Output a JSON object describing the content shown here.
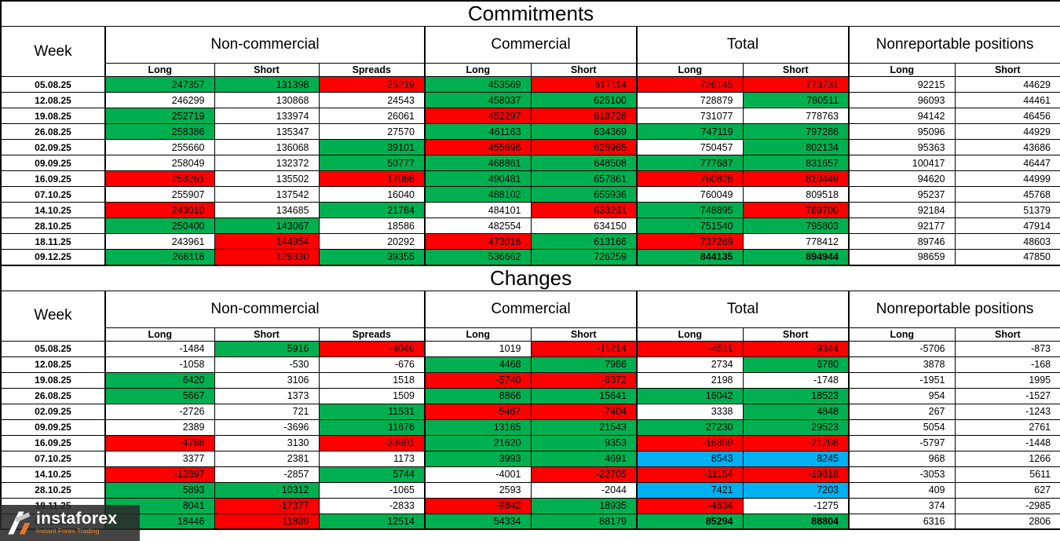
{
  "colors": {
    "green": "#00b050",
    "red": "#ff0000",
    "blue": "#00b0f0"
  },
  "watermark": {
    "brand": "instaforex",
    "tagline": "Instant Forex Trading"
  },
  "chart_data": [
    {
      "type": "table",
      "title": "Commitments",
      "week_header": "Week",
      "groups": [
        {
          "label": "Non-commercial",
          "cols": [
            "Long",
            "Short",
            "Spreads"
          ]
        },
        {
          "label": "Commercial",
          "cols": [
            "Long",
            "Short"
          ]
        },
        {
          "label": "Total",
          "cols": [
            "Long",
            "Short"
          ]
        },
        {
          "label": "Nonreportable positions",
          "cols": [
            "Long",
            "Short"
          ]
        }
      ],
      "rows": [
        {
          "week": "05.08.25",
          "cells": [
            [
              "247357",
              "g"
            ],
            [
              "131398",
              "g"
            ],
            [
              "25219",
              "r"
            ],
            [
              "453569",
              "g"
            ],
            [
              "617114",
              "r"
            ],
            [
              "726145",
              "r"
            ],
            [
              "773731",
              "r"
            ],
            [
              "92215",
              "w"
            ],
            [
              "44629",
              "w"
            ]
          ]
        },
        {
          "week": "12.08.25",
          "cells": [
            [
              "246299",
              "w"
            ],
            [
              "130868",
              "w"
            ],
            [
              "24543",
              "w"
            ],
            [
              "458037",
              "g"
            ],
            [
              "625100",
              "g"
            ],
            [
              "728879",
              "w"
            ],
            [
              "780511",
              "g"
            ],
            [
              "96093",
              "w"
            ],
            [
              "44461",
              "w"
            ]
          ]
        },
        {
          "week": "19.08.25",
          "cells": [
            [
              "252719",
              "g"
            ],
            [
              "133974",
              "w"
            ],
            [
              "26061",
              "w"
            ],
            [
              "452297",
              "r"
            ],
            [
              "618728",
              "r"
            ],
            [
              "731077",
              "w"
            ],
            [
              "778763",
              "w"
            ],
            [
              "94142",
              "w"
            ],
            [
              "46456",
              "w"
            ]
          ]
        },
        {
          "week": "26.08.25",
          "cells": [
            [
              "258386",
              "g"
            ],
            [
              "135347",
              "w"
            ],
            [
              "27570",
              "w"
            ],
            [
              "461163",
              "g"
            ],
            [
              "634369",
              "g"
            ],
            [
              "747119",
              "g"
            ],
            [
              "797286",
              "g"
            ],
            [
              "95096",
              "w"
            ],
            [
              "44929",
              "w"
            ]
          ]
        },
        {
          "week": "02.09.25",
          "cells": [
            [
              "255660",
              "w"
            ],
            [
              "136068",
              "w"
            ],
            [
              "39101",
              "g"
            ],
            [
              "455696",
              "r"
            ],
            [
              "626965",
              "r"
            ],
            [
              "750457",
              "w"
            ],
            [
              "802134",
              "g"
            ],
            [
              "95363",
              "w"
            ],
            [
              "43686",
              "w"
            ]
          ]
        },
        {
          "week": "09.09.25",
          "cells": [
            [
              "258049",
              "w"
            ],
            [
              "132372",
              "w"
            ],
            [
              "50777",
              "g"
            ],
            [
              "468861",
              "g"
            ],
            [
              "648508",
              "g"
            ],
            [
              "777687",
              "g"
            ],
            [
              "831657",
              "g"
            ],
            [
              "100417",
              "w"
            ],
            [
              "46447",
              "w"
            ]
          ]
        },
        {
          "week": "16.09.25",
          "cells": [
            [
              "253261",
              "r"
            ],
            [
              "135502",
              "w"
            ],
            [
              "17086",
              "r"
            ],
            [
              "490481",
              "g"
            ],
            [
              "657861",
              "g"
            ],
            [
              "760828",
              "r"
            ],
            [
              "810449",
              "r"
            ],
            [
              "94620",
              "w"
            ],
            [
              "44999",
              "w"
            ]
          ]
        },
        {
          "week": "07.10.25",
          "cells": [
            [
              "255907",
              "w"
            ],
            [
              "137542",
              "w"
            ],
            [
              "16040",
              "w"
            ],
            [
              "488102",
              "g"
            ],
            [
              "655936",
              "g"
            ],
            [
              "760049",
              "w"
            ],
            [
              "809518",
              "w"
            ],
            [
              "95237",
              "w"
            ],
            [
              "45768",
              "w"
            ]
          ]
        },
        {
          "week": "14.10.25",
          "cells": [
            [
              "243010",
              "r"
            ],
            [
              "134685",
              "w"
            ],
            [
              "21784",
              "g"
            ],
            [
              "484101",
              "w"
            ],
            [
              "633231",
              "r"
            ],
            [
              "748895",
              "g"
            ],
            [
              "789700",
              "r"
            ],
            [
              "92184",
              "w"
            ],
            [
              "51379",
              "w"
            ]
          ]
        },
        {
          "week": "28.10.25",
          "cells": [
            [
              "250400",
              "g"
            ],
            [
              "143067",
              "g"
            ],
            [
              "18586",
              "w"
            ],
            [
              "482554",
              "w"
            ],
            [
              "634150",
              "w"
            ],
            [
              "751540",
              "g"
            ],
            [
              "795803",
              "g"
            ],
            [
              "92177",
              "w"
            ],
            [
              "47914",
              "w"
            ]
          ]
        },
        {
          "week": "18.11.25",
          "cells": [
            [
              "243961",
              "w"
            ],
            [
              "144954",
              "r"
            ],
            [
              "20292",
              "w"
            ],
            [
              "473016",
              "r"
            ],
            [
              "613166",
              "g"
            ],
            [
              "737269",
              "r"
            ],
            [
              "778412",
              "w"
            ],
            [
              "89746",
              "w"
            ],
            [
              "48603",
              "w"
            ]
          ]
        },
        {
          "week": "09.12.25",
          "cells": [
            [
              "268118",
              "g"
            ],
            [
              "129330",
              "r"
            ],
            [
              "39355",
              "g"
            ],
            [
              "536662",
              "g"
            ],
            [
              "726259",
              "g"
            ],
            [
              "844135",
              "g",
              1
            ],
            [
              "894944",
              "g",
              1
            ],
            [
              "98659",
              "w"
            ],
            [
              "47850",
              "w"
            ]
          ]
        }
      ]
    },
    {
      "type": "table",
      "title": "Changes",
      "week_header": "Week",
      "groups": [
        {
          "label": "Non-commercial",
          "cols": [
            "Long",
            "Short",
            "Spreads"
          ]
        },
        {
          "label": "Commercial",
          "cols": [
            "Long",
            "Short"
          ]
        },
        {
          "label": "Total",
          "cols": [
            "Long",
            "Short"
          ]
        },
        {
          "label": "Nonreportable positions",
          "cols": [
            "Long",
            "Short"
          ]
        }
      ],
      "rows": [
        {
          "week": "05.08.25",
          "cells": [
            [
              "-1484",
              "w"
            ],
            [
              "5916",
              "g"
            ],
            [
              "-4046",
              "r"
            ],
            [
              "1019",
              "w"
            ],
            [
              "-11214",
              "r"
            ],
            [
              "-4511",
              "r"
            ],
            [
              "-9344",
              "r"
            ],
            [
              "-5706",
              "w"
            ],
            [
              "-873",
              "w"
            ]
          ]
        },
        {
          "week": "12.08.25",
          "cells": [
            [
              "-1058",
              "w"
            ],
            [
              "-530",
              "w"
            ],
            [
              "-676",
              "w"
            ],
            [
              "4468",
              "g"
            ],
            [
              "7986",
              "g"
            ],
            [
              "2734",
              "w"
            ],
            [
              "6780",
              "g"
            ],
            [
              "3878",
              "w"
            ],
            [
              "-168",
              "w"
            ]
          ]
        },
        {
          "week": "19.08.25",
          "cells": [
            [
              "6420",
              "g"
            ],
            [
              "3106",
              "w"
            ],
            [
              "1518",
              "w"
            ],
            [
              "-5740",
              "r"
            ],
            [
              "-6372",
              "r"
            ],
            [
              "2198",
              "w"
            ],
            [
              "-1748",
              "w"
            ],
            [
              "-1951",
              "w"
            ],
            [
              "1995",
              "w"
            ]
          ]
        },
        {
          "week": "26.08.25",
          "cells": [
            [
              "5667",
              "g"
            ],
            [
              "1373",
              "w"
            ],
            [
              "1509",
              "w"
            ],
            [
              "8866",
              "g"
            ],
            [
              "15641",
              "g"
            ],
            [
              "16042",
              "g"
            ],
            [
              "18523",
              "g"
            ],
            [
              "954",
              "w"
            ],
            [
              "-1527",
              "w"
            ]
          ]
        },
        {
          "week": "02.09.25",
          "cells": [
            [
              "-2726",
              "w"
            ],
            [
              "721",
              "w"
            ],
            [
              "11531",
              "g"
            ],
            [
              "-5467",
              "r"
            ],
            [
              "-7404",
              "r"
            ],
            [
              "3338",
              "w"
            ],
            [
              "4848",
              "g"
            ],
            [
              "267",
              "w"
            ],
            [
              "-1243",
              "w"
            ]
          ]
        },
        {
          "week": "09.09.25",
          "cells": [
            [
              "2389",
              "w"
            ],
            [
              "-3696",
              "w"
            ],
            [
              "11676",
              "g"
            ],
            [
              "13165",
              "g"
            ],
            [
              "21543",
              "g"
            ],
            [
              "27230",
              "g"
            ],
            [
              "29523",
              "g"
            ],
            [
              "5054",
              "w"
            ],
            [
              "2761",
              "w"
            ]
          ]
        },
        {
          "week": "16.09.25",
          "cells": [
            [
              "-4788",
              "r"
            ],
            [
              "3130",
              "w"
            ],
            [
              "-33691",
              "r"
            ],
            [
              "21620",
              "g"
            ],
            [
              "9353",
              "g"
            ],
            [
              "-16859",
              "r"
            ],
            [
              "-21208",
              "r"
            ],
            [
              "-5797",
              "w"
            ],
            [
              "-1448",
              "w"
            ]
          ]
        },
        {
          "week": "07.10.25",
          "cells": [
            [
              "3377",
              "w"
            ],
            [
              "2381",
              "w"
            ],
            [
              "1173",
              "w"
            ],
            [
              "3993",
              "g"
            ],
            [
              "4691",
              "g"
            ],
            [
              "8543",
              "b"
            ],
            [
              "8245",
              "b"
            ],
            [
              "968",
              "w"
            ],
            [
              "1266",
              "w"
            ]
          ]
        },
        {
          "week": "14.10.25",
          "cells": [
            [
              "-12897",
              "r"
            ],
            [
              "-2857",
              "w"
            ],
            [
              "5744",
              "g"
            ],
            [
              "-4001",
              "w"
            ],
            [
              "-22705",
              "r"
            ],
            [
              "-11154",
              "r"
            ],
            [
              "-19818",
              "r"
            ],
            [
              "-3053",
              "w"
            ],
            [
              "5611",
              "w"
            ]
          ]
        },
        {
          "week": "28.10.25",
          "cells": [
            [
              "5893",
              "g"
            ],
            [
              "10312",
              "g"
            ],
            [
              "-1065",
              "w"
            ],
            [
              "2593",
              "w"
            ],
            [
              "-2044",
              "w"
            ],
            [
              "7421",
              "b"
            ],
            [
              "7203",
              "b"
            ],
            [
              "409",
              "w"
            ],
            [
              "627",
              "w"
            ]
          ]
        },
        {
          "week": "18.11.25",
          "cells": [
            [
              "8041",
              "g"
            ],
            [
              "-17377",
              "r"
            ],
            [
              "-2833",
              "w"
            ],
            [
              "-9842",
              "r"
            ],
            [
              "18935",
              "g"
            ],
            [
              "-4634",
              "r"
            ],
            [
              "-1275",
              "w"
            ],
            [
              "374",
              "w"
            ],
            [
              "-2985",
              "w"
            ]
          ]
        },
        {
          "week": "09.12.25",
          "cells": [
            [
              "18446",
              "g"
            ],
            [
              "-11889",
              "r"
            ],
            [
              "12514",
              "g"
            ],
            [
              "54334",
              "g"
            ],
            [
              "88179",
              "g"
            ],
            [
              "85294",
              "g",
              1
            ],
            [
              "88804",
              "g",
              1
            ],
            [
              "6316",
              "w"
            ],
            [
              "2806",
              "w"
            ]
          ]
        }
      ]
    }
  ]
}
